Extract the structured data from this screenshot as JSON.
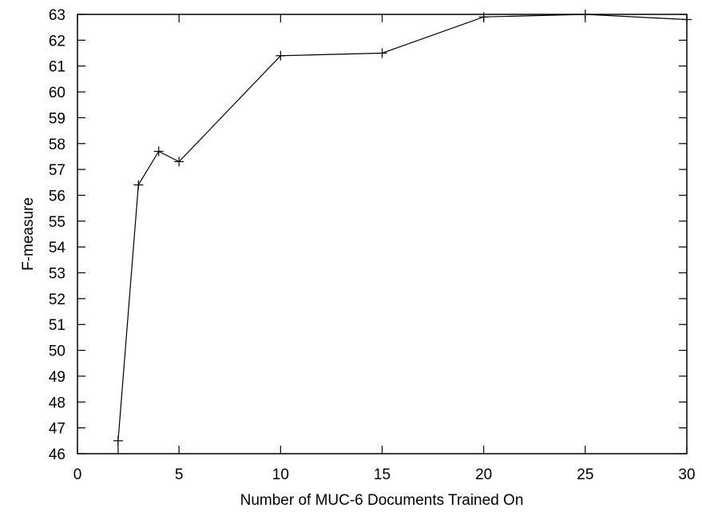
{
  "chart_data": {
    "type": "line",
    "title": "",
    "xlabel": "Number of MUC-6 Documents Trained On",
    "ylabel": "F-measure",
    "xlim": [
      0,
      30
    ],
    "ylim": [
      46,
      63
    ],
    "x_ticks": [
      0,
      5,
      10,
      15,
      20,
      25,
      30
    ],
    "y_ticks": [
      46,
      47,
      48,
      49,
      50,
      51,
      52,
      53,
      54,
      55,
      56,
      57,
      58,
      59,
      60,
      61,
      62,
      63
    ],
    "grid": false,
    "legend": "none",
    "marker": "plus",
    "line_color": "#000000",
    "series": [
      {
        "x": [
          2,
          3,
          4,
          5,
          10,
          15,
          20,
          25,
          30
        ],
        "y": [
          46.5,
          56.4,
          57.7,
          57.3,
          61.4,
          61.5,
          62.9,
          63.0,
          62.8
        ]
      }
    ]
  }
}
